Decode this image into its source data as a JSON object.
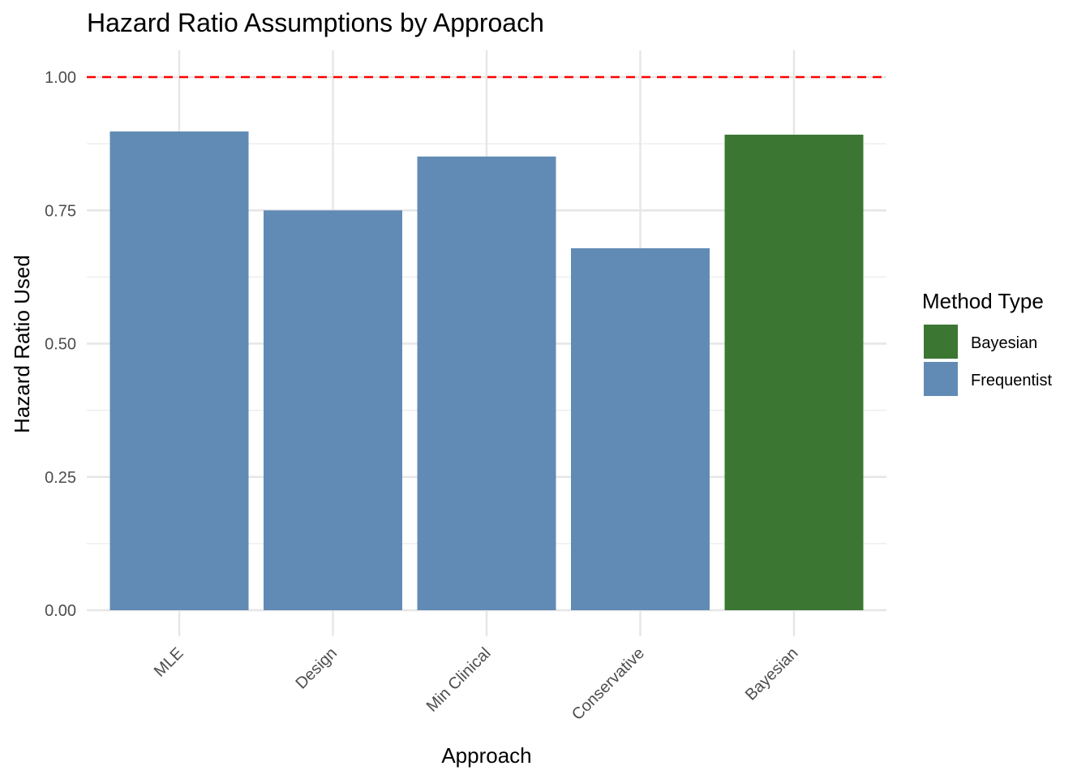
{
  "chart_data": {
    "type": "bar",
    "title": "Hazard Ratio Assumptions by Approach",
    "xlabel": "Approach",
    "ylabel": "Hazard Ratio Used",
    "categories": [
      "MLE",
      "Design",
      "Min Clinical",
      "Conservative",
      "Bayesian"
    ],
    "values": [
      0.898,
      0.75,
      0.851,
      0.679,
      0.892
    ],
    "groups": [
      "Frequentist",
      "Frequentist",
      "Frequentist",
      "Frequentist",
      "Bayesian"
    ],
    "ylim": [
      0,
      1.0
    ],
    "yticks": [
      "0.00",
      "0.25",
      "0.50",
      "0.75",
      "1.00"
    ],
    "yticks_values": [
      0,
      0.25,
      0.5,
      0.75,
      1.0
    ],
    "reference_line": {
      "value": 1.0,
      "style": "dashed",
      "color": "#ff0000"
    },
    "legend": {
      "title": "Method Type",
      "position": "right",
      "entries": [
        {
          "label": "Bayesian",
          "color": "#3b7733"
        },
        {
          "label": "Frequentist",
          "color": "#618bb5"
        }
      ]
    },
    "grid": true,
    "x_tick_rotation": "45deg"
  }
}
